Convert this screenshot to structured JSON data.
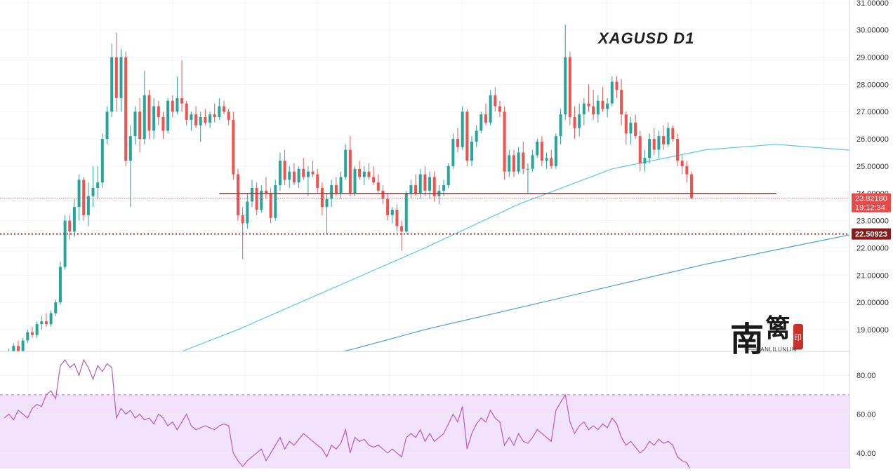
{
  "chart_data": {
    "type": "candlestick",
    "title": "XAGUSD  D1",
    "price_axis": {
      "ticks": [
        "31.00000",
        "30.00000",
        "29.00000",
        "28.00000",
        "27.00000",
        "26.00000",
        "25.00000",
        "24.00000",
        "23.00000",
        "22.00000",
        "21.00000",
        "20.00000",
        "19.00000"
      ],
      "range": [
        18.2,
        31.1
      ]
    },
    "price_tags": {
      "current": {
        "price": 23.8218,
        "label": "23.82180",
        "countdown": "19:12:34",
        "color": "#e84a4a"
      },
      "support": {
        "price": 22.50923,
        "label": "22.50923",
        "color": "#8b1a1a"
      }
    },
    "resistance_line": {
      "price": 24.0,
      "color": "#c62828"
    },
    "candles": [
      [
        18.0,
        18.2,
        17.9,
        18.1
      ],
      [
        18.1,
        18.3,
        18.0,
        18.2
      ],
      [
        18.2,
        18.5,
        18.1,
        18.4
      ],
      [
        18.4,
        18.6,
        18.1,
        18.2
      ],
      [
        18.2,
        18.7,
        18.1,
        18.6
      ],
      [
        18.6,
        19.0,
        18.5,
        18.9
      ],
      [
        18.9,
        19.1,
        18.7,
        18.8
      ],
      [
        18.8,
        19.3,
        18.7,
        19.2
      ],
      [
        19.2,
        19.5,
        19.0,
        19.3
      ],
      [
        19.3,
        19.6,
        19.1,
        19.2
      ],
      [
        19.2,
        19.7,
        19.1,
        19.6
      ],
      [
        19.6,
        20.1,
        19.5,
        20.0
      ],
      [
        20.0,
        21.5,
        19.9,
        21.3
      ],
      [
        21.3,
        23.2,
        21.2,
        23.0
      ],
      [
        23.0,
        23.2,
        22.3,
        22.6
      ],
      [
        22.6,
        23.8,
        22.4,
        23.5
      ],
      [
        23.5,
        24.7,
        23.0,
        24.5
      ],
      [
        24.5,
        24.6,
        23.0,
        23.2
      ],
      [
        23.2,
        24.4,
        22.8,
        23.9
      ],
      [
        23.9,
        25.0,
        23.5,
        24.2
      ],
      [
        24.2,
        25.0,
        23.8,
        24.4
      ],
      [
        24.4,
        26.2,
        24.2,
        26.0
      ],
      [
        26.0,
        27.2,
        25.8,
        27.0
      ],
      [
        27.0,
        29.5,
        26.8,
        29.0
      ],
      [
        29.0,
        29.9,
        27.0,
        27.5
      ],
      [
        27.5,
        29.3,
        27.0,
        29.0
      ],
      [
        29.0,
        29.2,
        25.0,
        25.2
      ],
      [
        25.2,
        26.5,
        23.5,
        26.1
      ],
      [
        26.1,
        27.2,
        25.8,
        27.0
      ],
      [
        27.0,
        27.5,
        25.5,
        26.0
      ],
      [
        26.0,
        28.5,
        25.8,
        27.6
      ],
      [
        27.6,
        27.8,
        26.0,
        26.3
      ],
      [
        26.3,
        27.5,
        26.0,
        27.2
      ],
      [
        27.2,
        27.4,
        26.5,
        26.8
      ],
      [
        26.8,
        27.0,
        26.0,
        26.3
      ],
      [
        26.3,
        27.5,
        26.2,
        27.4
      ],
      [
        27.4,
        27.6,
        26.8,
        27.0
      ],
      [
        27.0,
        28.3,
        26.9,
        27.5
      ],
      [
        27.5,
        28.9,
        27.0,
        27.3
      ],
      [
        27.3,
        27.4,
        26.5,
        26.7
      ],
      [
        26.7,
        27.0,
        26.3,
        26.9
      ],
      [
        26.9,
        27.2,
        26.4,
        26.5
      ],
      [
        26.5,
        27.0,
        25.9,
        26.8
      ],
      [
        26.8,
        27.1,
        26.5,
        26.6
      ],
      [
        26.6,
        27.0,
        26.4,
        26.9
      ],
      [
        26.9,
        27.3,
        26.6,
        26.8
      ],
      [
        26.8,
        27.5,
        26.7,
        27.2
      ],
      [
        27.2,
        27.4,
        26.9,
        27.0
      ],
      [
        27.0,
        27.1,
        26.5,
        26.7
      ],
      [
        26.7,
        27.0,
        24.5,
        24.7
      ],
      [
        24.7,
        24.9,
        23.0,
        23.2
      ],
      [
        23.2,
        23.5,
        21.6,
        22.9
      ],
      [
        22.9,
        24.0,
        22.7,
        23.7
      ],
      [
        23.7,
        24.5,
        23.5,
        24.2
      ],
      [
        24.2,
        24.4,
        23.2,
        23.4
      ],
      [
        23.4,
        24.3,
        23.3,
        24.1
      ],
      [
        24.1,
        24.6,
        23.8,
        24.0
      ],
      [
        24.0,
        24.2,
        22.9,
        23.1
      ],
      [
        23.1,
        24.5,
        23.0,
        24.3
      ],
      [
        24.3,
        25.5,
        24.1,
        25.2
      ],
      [
        25.2,
        25.6,
        24.3,
        24.5
      ],
      [
        24.5,
        25.0,
        24.2,
        24.8
      ],
      [
        24.8,
        25.1,
        24.3,
        24.4
      ],
      [
        24.4,
        25.0,
        24.2,
        24.9
      ],
      [
        24.9,
        25.3,
        24.5,
        24.6
      ],
      [
        24.6,
        25.0,
        23.9,
        24.8
      ],
      [
        24.8,
        25.2,
        24.6,
        24.7
      ],
      [
        24.7,
        24.9,
        24.0,
        24.2
      ],
      [
        24.2,
        24.4,
        23.2,
        23.5
      ],
      [
        23.5,
        24.0,
        22.5,
        23.8
      ],
      [
        23.8,
        24.5,
        23.5,
        24.3
      ],
      [
        24.3,
        24.6,
        23.9,
        24.0
      ],
      [
        24.0,
        24.8,
        23.8,
        24.6
      ],
      [
        24.6,
        25.8,
        24.5,
        25.6
      ],
      [
        25.6,
        26.1,
        23.9,
        24.0
      ],
      [
        24.0,
        25.0,
        23.9,
        24.9
      ],
      [
        24.9,
        25.2,
        24.5,
        24.6
      ],
      [
        24.6,
        25.0,
        24.3,
        24.8
      ],
      [
        24.8,
        25.1,
        24.5,
        24.6
      ],
      [
        24.6,
        25.0,
        24.3,
        24.4
      ],
      [
        24.4,
        24.7,
        24.0,
        24.1
      ],
      [
        24.1,
        24.3,
        23.6,
        23.8
      ],
      [
        23.8,
        24.0,
        23.0,
        23.2
      ],
      [
        23.2,
        23.5,
        22.9,
        23.4
      ],
      [
        23.4,
        23.6,
        22.6,
        22.8
      ],
      [
        22.8,
        23.0,
        21.9,
        22.6
      ],
      [
        22.6,
        24.1,
        22.5,
        24.0
      ],
      [
        24.0,
        24.5,
        23.8,
        24.3
      ],
      [
        24.3,
        24.7,
        23.9,
        24.0
      ],
      [
        24.0,
        24.9,
        23.8,
        24.7
      ],
      [
        24.7,
        25.0,
        23.9,
        24.1
      ],
      [
        24.1,
        24.8,
        23.8,
        24.6
      ],
      [
        24.6,
        24.8,
        23.7,
        23.9
      ],
      [
        23.9,
        24.3,
        23.6,
        24.1
      ],
      [
        24.1,
        24.5,
        23.9,
        24.3
      ],
      [
        24.3,
        25.1,
        24.2,
        25.0
      ],
      [
        25.0,
        26.2,
        24.9,
        26.0
      ],
      [
        26.0,
        26.4,
        25.5,
        25.7
      ],
      [
        25.7,
        27.2,
        25.6,
        27.0
      ],
      [
        27.0,
        27.1,
        25.0,
        25.2
      ],
      [
        25.2,
        26.1,
        25.0,
        25.9
      ],
      [
        25.9,
        26.5,
        25.7,
        26.3
      ],
      [
        26.3,
        27.0,
        26.2,
        26.9
      ],
      [
        26.9,
        27.3,
        26.5,
        26.6
      ],
      [
        26.6,
        27.8,
        26.5,
        27.6
      ],
      [
        27.6,
        27.9,
        27.0,
        27.2
      ],
      [
        27.2,
        27.4,
        26.8,
        27.0
      ],
      [
        27.0,
        27.2,
        24.5,
        24.8
      ],
      [
        24.8,
        25.6,
        24.6,
        25.4
      ],
      [
        25.4,
        25.6,
        24.6,
        24.8
      ],
      [
        24.8,
        25.7,
        24.7,
        25.5
      ],
      [
        25.5,
        25.9,
        24.7,
        24.9
      ],
      [
        24.9,
        25.1,
        24.0,
        24.9
      ],
      [
        24.9,
        25.6,
        24.8,
        25.4
      ],
      [
        25.4,
        26.0,
        25.3,
        25.9
      ],
      [
        25.9,
        26.1,
        25.0,
        25.2
      ],
      [
        25.2,
        25.5,
        24.9,
        25.3
      ],
      [
        25.3,
        25.6,
        24.9,
        25.0
      ],
      [
        25.0,
        26.2,
        24.9,
        26.1
      ],
      [
        26.1,
        27.1,
        25.8,
        26.9
      ],
      [
        26.9,
        30.2,
        26.7,
        29.0
      ],
      [
        29.0,
        29.2,
        26.5,
        26.8
      ],
      [
        26.8,
        27.2,
        26.0,
        26.4
      ],
      [
        26.4,
        27.3,
        26.1,
        26.9
      ],
      [
        26.9,
        27.5,
        26.5,
        27.3
      ],
      [
        27.3,
        28.0,
        27.0,
        27.2
      ],
      [
        27.2,
        27.8,
        26.7,
        26.9
      ],
      [
        26.9,
        27.6,
        26.6,
        27.4
      ],
      [
        27.4,
        27.9,
        27.0,
        27.1
      ],
      [
        27.1,
        27.5,
        26.8,
        27.3
      ],
      [
        27.3,
        28.3,
        27.2,
        28.1
      ],
      [
        28.1,
        28.3,
        27.5,
        27.8
      ],
      [
        27.8,
        28.2,
        26.5,
        26.9
      ],
      [
        26.9,
        27.0,
        25.8,
        26.2
      ],
      [
        26.2,
        26.8,
        25.8,
        26.6
      ],
      [
        26.6,
        26.9,
        26.0,
        26.1
      ],
      [
        26.1,
        26.3,
        24.8,
        25.1
      ],
      [
        25.1,
        25.6,
        24.8,
        25.3
      ],
      [
        25.3,
        26.2,
        25.1,
        26.0
      ],
      [
        26.0,
        26.4,
        25.4,
        25.6
      ],
      [
        25.6,
        26.3,
        25.3,
        26.1
      ],
      [
        26.1,
        26.5,
        25.6,
        25.8
      ],
      [
        25.8,
        26.6,
        25.7,
        26.4
      ],
      [
        26.4,
        26.5,
        25.9,
        26.0
      ],
      [
        26.0,
        26.2,
        25.0,
        25.2
      ],
      [
        25.2,
        25.4,
        24.7,
        25.0
      ],
      [
        25.0,
        25.2,
        24.4,
        24.7
      ],
      [
        24.7,
        24.8,
        23.8,
        23.82
      ]
    ],
    "ma_fast": {
      "color": "#5bc8e8",
      "points": [
        [
          31,
          17.9
        ],
        [
          35,
          18.0
        ],
        [
          50,
          19.0
        ],
        [
          70,
          20.5
        ],
        [
          90,
          22.0
        ],
        [
          110,
          23.6
        ],
        [
          130,
          24.9
        ],
        [
          150,
          25.6
        ],
        [
          165,
          25.8
        ],
        [
          180,
          25.6
        ],
        [
          195,
          25.2
        ],
        [
          210,
          24.6
        ],
        [
          225,
          24.2
        ],
        [
          240,
          24.1
        ],
        [
          255,
          24.0
        ],
        [
          270,
          24.3
        ],
        [
          285,
          24.7
        ],
        [
          300,
          25.1
        ],
        [
          315,
          25.6
        ],
        [
          330,
          25.9
        ],
        [
          340,
          26.2
        ],
        [
          347,
          26.4
        ],
        [
          357,
          26.4
        ],
        [
          366,
          26.2
        ]
      ]
    },
    "ma_slow": {
      "color": "#4a9fd8",
      "points": [
        [
          65,
          17.9
        ],
        [
          75,
          18.3
        ],
        [
          90,
          19.0
        ],
        [
          110,
          19.8
        ],
        [
          130,
          20.6
        ],
        [
          150,
          21.4
        ],
        [
          170,
          22.1
        ],
        [
          190,
          22.8
        ],
        [
          210,
          23.5
        ],
        [
          230,
          24.1
        ],
        [
          250,
          24.6
        ],
        [
          270,
          25.1
        ],
        [
          285,
          25.4
        ],
        [
          300,
          25.5
        ],
        [
          320,
          25.5
        ],
        [
          340,
          25.4
        ],
        [
          360,
          25.3
        ],
        [
          366,
          25.25
        ]
      ]
    },
    "rsi": {
      "ticks": [
        "80.00",
        "60.00",
        "40.00"
      ],
      "range": [
        32,
        92
      ],
      "band": [
        30,
        70
      ],
      "line_color": "#b35bc8",
      "band_color": "#f2e2fb",
      "values": [
        58,
        60,
        57,
        62,
        60,
        58,
        63,
        65,
        64,
        70,
        72,
        68,
        85,
        88,
        84,
        86,
        80,
        88,
        84,
        78,
        85,
        82,
        86,
        84,
        58,
        63,
        60,
        62,
        58,
        60,
        57,
        58,
        55,
        60,
        58,
        54,
        56,
        52,
        56,
        60,
        54,
        52,
        53,
        54,
        53,
        52,
        54,
        55,
        54,
        40,
        36,
        33,
        36,
        38,
        40,
        42,
        36,
        40,
        44,
        48,
        42,
        46,
        44,
        47,
        50,
        48,
        46,
        44,
        42,
        38,
        44,
        42,
        45,
        52,
        40,
        48,
        46,
        47,
        44,
        43,
        44,
        42,
        40,
        42,
        40,
        38,
        48,
        50,
        48,
        52,
        46,
        50,
        46,
        48,
        50,
        55,
        60,
        56,
        64,
        42,
        50,
        55,
        58,
        56,
        62,
        58,
        56,
        44,
        48,
        44,
        50,
        46,
        45,
        48,
        52,
        50,
        48,
        46,
        62,
        66,
        70,
        56,
        50,
        54,
        56,
        52,
        54,
        52,
        55,
        53,
        58,
        55,
        48,
        44,
        46,
        43,
        40,
        42,
        46,
        44,
        47,
        45,
        46,
        44,
        38,
        36,
        35,
        30
      ]
    },
    "watermark": {
      "glyph_main": "南",
      "glyph_side": "篱",
      "seal_text": "印",
      "latin": "NANLILUNLIN"
    }
  }
}
